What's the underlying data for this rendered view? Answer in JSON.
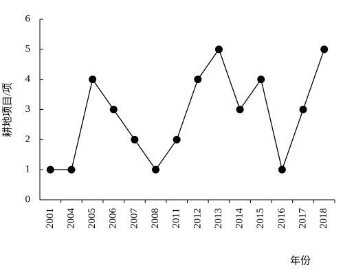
{
  "chart_data": {
    "type": "line",
    "x_label": "年份",
    "y_label": "耕地项目/项",
    "categories": [
      "2001",
      "2004",
      "2005",
      "2006",
      "2007",
      "2008",
      "2011",
      "2012",
      "2013",
      "2014",
      "2015",
      "2016",
      "2017",
      "2018"
    ],
    "values": [
      1,
      1,
      4,
      3,
      2,
      1,
      2,
      4,
      5,
      3,
      4,
      1,
      3,
      5
    ],
    "color": "#000000",
    "ylim": [
      0,
      6
    ],
    "yticks": [
      0,
      1,
      2,
      3,
      4,
      5,
      6
    ],
    "grid": false
  }
}
